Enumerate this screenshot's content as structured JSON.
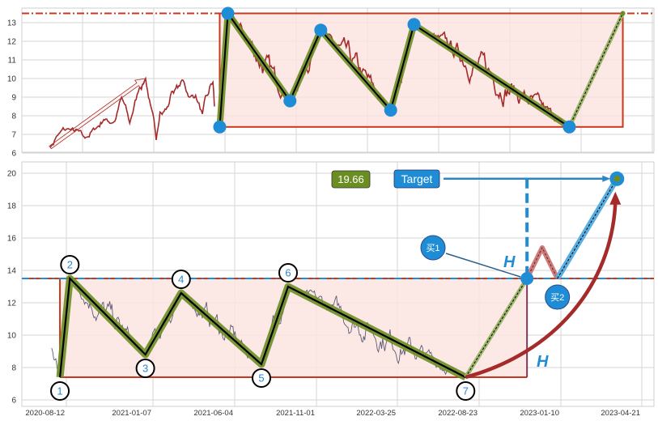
{
  "chart_data": [
    {
      "type": "line",
      "panel": "top",
      "title": "",
      "xlabel": "",
      "ylabel": "",
      "ylim": [
        6.04,
        13.78
      ],
      "yticks": [
        6,
        7,
        8,
        9,
        10,
        11,
        12,
        13
      ],
      "x_tick_labels_shown": false,
      "grid": true,
      "colors": {
        "price": "#a52a2a",
        "pattern": "#6b8e23",
        "pivot": "#1f8dd6",
        "box_edge": "#c8381f",
        "box_fill": "#fbe4df",
        "resistance": "#c8381f"
      },
      "price_anchors": [
        {
          "x": "2019-08-15",
          "y": 6.3
        },
        {
          "x": "2019-08-28",
          "y": 6.9
        },
        {
          "x": "2019-09-22",
          "y": 7.3
        },
        {
          "x": "2019-10-26",
          "y": 6.8
        },
        {
          "x": "2019-11-17",
          "y": 7.3
        },
        {
          "x": "2019-12-04",
          "y": 7.8
        },
        {
          "x": "2019-12-27",
          "y": 7.7
        },
        {
          "x": "2020-01-10",
          "y": 9.0
        },
        {
          "x": "2020-01-27",
          "y": 7.6
        },
        {
          "x": "2020-02-16",
          "y": 9.5
        },
        {
          "x": "2020-02-29",
          "y": 10.0
        },
        {
          "x": "2020-03-10",
          "y": 8.6
        },
        {
          "x": "2020-03-22",
          "y": 6.7
        },
        {
          "x": "2020-03-30",
          "y": 8.2
        },
        {
          "x": "2020-04-16",
          "y": 8.5
        },
        {
          "x": "2020-04-23",
          "y": 9.3
        },
        {
          "x": "2020-05-10",
          "y": 9.6
        },
        {
          "x": "2020-05-17",
          "y": 9.9
        },
        {
          "x": "2020-05-30",
          "y": 9.0
        },
        {
          "x": "2020-06-12",
          "y": 9.1
        },
        {
          "x": "2020-06-26",
          "y": 8.1
        },
        {
          "x": "2020-07-09",
          "y": 9.2
        },
        {
          "x": "2020-07-18",
          "y": 9.8
        },
        {
          "x": "2020-07-21",
          "y": 8.5
        }
      ],
      "trend_arrow": {
        "from": {
          "x": "2019-08-15",
          "y": 6.3
        },
        "to": {
          "x": "2020-02-29",
          "y": 10.0
        }
      },
      "pattern_points": [
        {
          "x": "2020-08-01",
          "y": 7.4
        },
        {
          "x": "2020-08-18",
          "y": 13.5
        },
        {
          "x": "2020-12-25",
          "y": 8.8
        },
        {
          "x": "2021-02-27",
          "y": 12.6
        },
        {
          "x": "2021-07-23",
          "y": 8.3
        },
        {
          "x": "2021-09-10",
          "y": 12.9
        },
        {
          "x": "2022-07-29",
          "y": 7.4
        }
      ],
      "breakout": {
        "x": "2022-11-13",
        "y": 13.5
      },
      "box": {
        "x_start": "2020-08-01",
        "x_end": "2022-11-13",
        "y_low": 7.4,
        "y_high": 13.5
      },
      "resistance": 13.5
    },
    {
      "type": "line",
      "panel": "bottom",
      "title": "",
      "xlabel": "",
      "ylabel": "",
      "ylim": [
        5.6,
        20.7
      ],
      "yticks": [
        6,
        8,
        10,
        12,
        14,
        16,
        18,
        20
      ],
      "xticks": [
        "2020-08-12",
        "2021-01-07",
        "2021-06-04",
        "2021-11-01",
        "2022-03-25",
        "2022-08-23",
        "2023-01-10",
        "2023-04-21"
      ],
      "grid": true,
      "colors": {
        "price": "#5c5c78",
        "pattern": "#6b8e23",
        "target": "#1f8dd6",
        "box_edge": "#c8381f",
        "box_fill": "#fbe4df",
        "curve": "#a52a2a",
        "pullback": "#c0504d",
        "value_box": "#6b8e23"
      },
      "price_start": {
        "x": "2020-07-18",
        "y": 9.2
      },
      "pattern_points": [
        {
          "label": "1",
          "x": "2020-08-01",
          "y": 7.4
        },
        {
          "label": "2",
          "x": "2020-08-18",
          "y": 13.5
        },
        {
          "label": "3",
          "x": "2020-12-25",
          "y": 8.8
        },
        {
          "label": "4",
          "x": "2021-02-27",
          "y": 12.6
        },
        {
          "label": "5",
          "x": "2021-07-23",
          "y": 8.2
        },
        {
          "label": "6",
          "x": "2021-09-10",
          "y": 13.0
        },
        {
          "label": "7",
          "x": "2022-07-29",
          "y": 7.4
        }
      ],
      "breakout": {
        "label": "买1",
        "x": "2022-11-13",
        "y": 13.5
      },
      "pullback_peak": {
        "x": "2022-12-09",
        "y": 15.4
      },
      "retest": {
        "label": "买2",
        "x": "2023-01-04",
        "y": 13.5
      },
      "target": {
        "label": "Target",
        "value_label": "19.66",
        "x": "2023-03-21",
        "y": 19.66
      },
      "height_label": "H",
      "box": {
        "x_start": "2020-08-01",
        "x_end": "2022-11-13",
        "y_low": 7.4,
        "y_high": 13.5
      },
      "resistance": 13.5
    }
  ]
}
